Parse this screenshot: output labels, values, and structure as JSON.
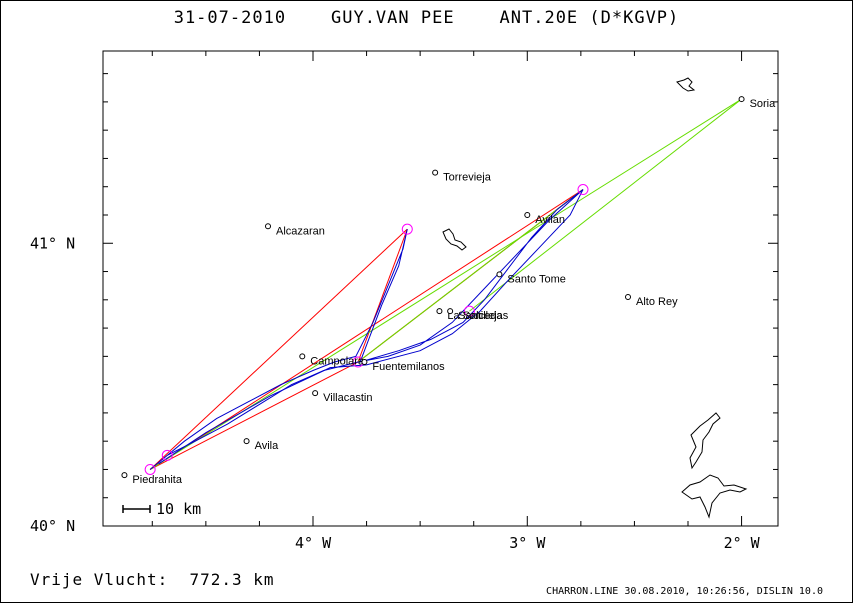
{
  "header": {
    "title": "31-07-2010    GUY.VAN PEE    ANT.20E (D*KGVP)"
  },
  "footer": {
    "distance_label": "Vrije Vlucht:  772.3 km",
    "credit": "CHARRON.LINE 30.08.2010, 10:26:56, DISLIN 10.0"
  },
  "map": {
    "x_axis": {
      "min_deg": -4.98,
      "max_deg": -1.83,
      "ticks": [
        {
          "value": -4,
          "label": "4° W"
        },
        {
          "value": -3,
          "label": "3° W"
        },
        {
          "value": -2,
          "label": "2° W"
        }
      ]
    },
    "y_axis": {
      "min_deg": 40.0,
      "max_deg": 41.68,
      "ticks": [
        {
          "value": 41,
          "label": "41° N"
        },
        {
          "value": 40,
          "label": "40° N"
        }
      ]
    },
    "scale_bar_label": "10 km",
    "places": [
      {
        "name": "Soria",
        "lon": -2.0,
        "lat": 41.51
      },
      {
        "name": "Torrevieja",
        "lon": -3.43,
        "lat": 41.25
      },
      {
        "name": "Alcazaran",
        "lon": -4.21,
        "lat": 41.06
      },
      {
        "name": "Avilan",
        "lon": -3.0,
        "lat": 41.1
      },
      {
        "name": "Santo Tome",
        "lon": -3.13,
        "lat": 40.89
      },
      {
        "name": "Alto Rey",
        "lon": -2.53,
        "lat": 40.81
      },
      {
        "name": "La Salceda",
        "lon": -3.41,
        "lat": 40.76
      },
      {
        "name": "Santillejas",
        "lon": -3.36,
        "lat": 40.76
      },
      {
        "name": "Campolara",
        "lon": -4.05,
        "lat": 40.6
      },
      {
        "name": "Fuentemilanos",
        "lon": -3.76,
        "lat": 40.58
      },
      {
        "name": "Villacastin",
        "lon": -3.99,
        "lat": 40.47
      },
      {
        "name": "Avila",
        "lon": -4.31,
        "lat": 40.3
      },
      {
        "name": "Piedrahita",
        "lon": -4.88,
        "lat": 40.18
      }
    ],
    "turnpoints": [
      {
        "lon": -4.76,
        "lat": 40.2
      },
      {
        "lon": -3.56,
        "lat": 41.05
      },
      {
        "lon": -2.74,
        "lat": 41.19
      },
      {
        "lon": -3.79,
        "lat": 40.58
      },
      {
        "lon": -3.27,
        "lat": 40.76
      },
      {
        "lon": -4.68,
        "lat": 40.25
      }
    ],
    "colors": {
      "track": "#0000cc",
      "triangle": "#ff0000",
      "legs": "#66dd00",
      "outline": "#000000",
      "marker": "#ff00ff"
    }
  }
}
